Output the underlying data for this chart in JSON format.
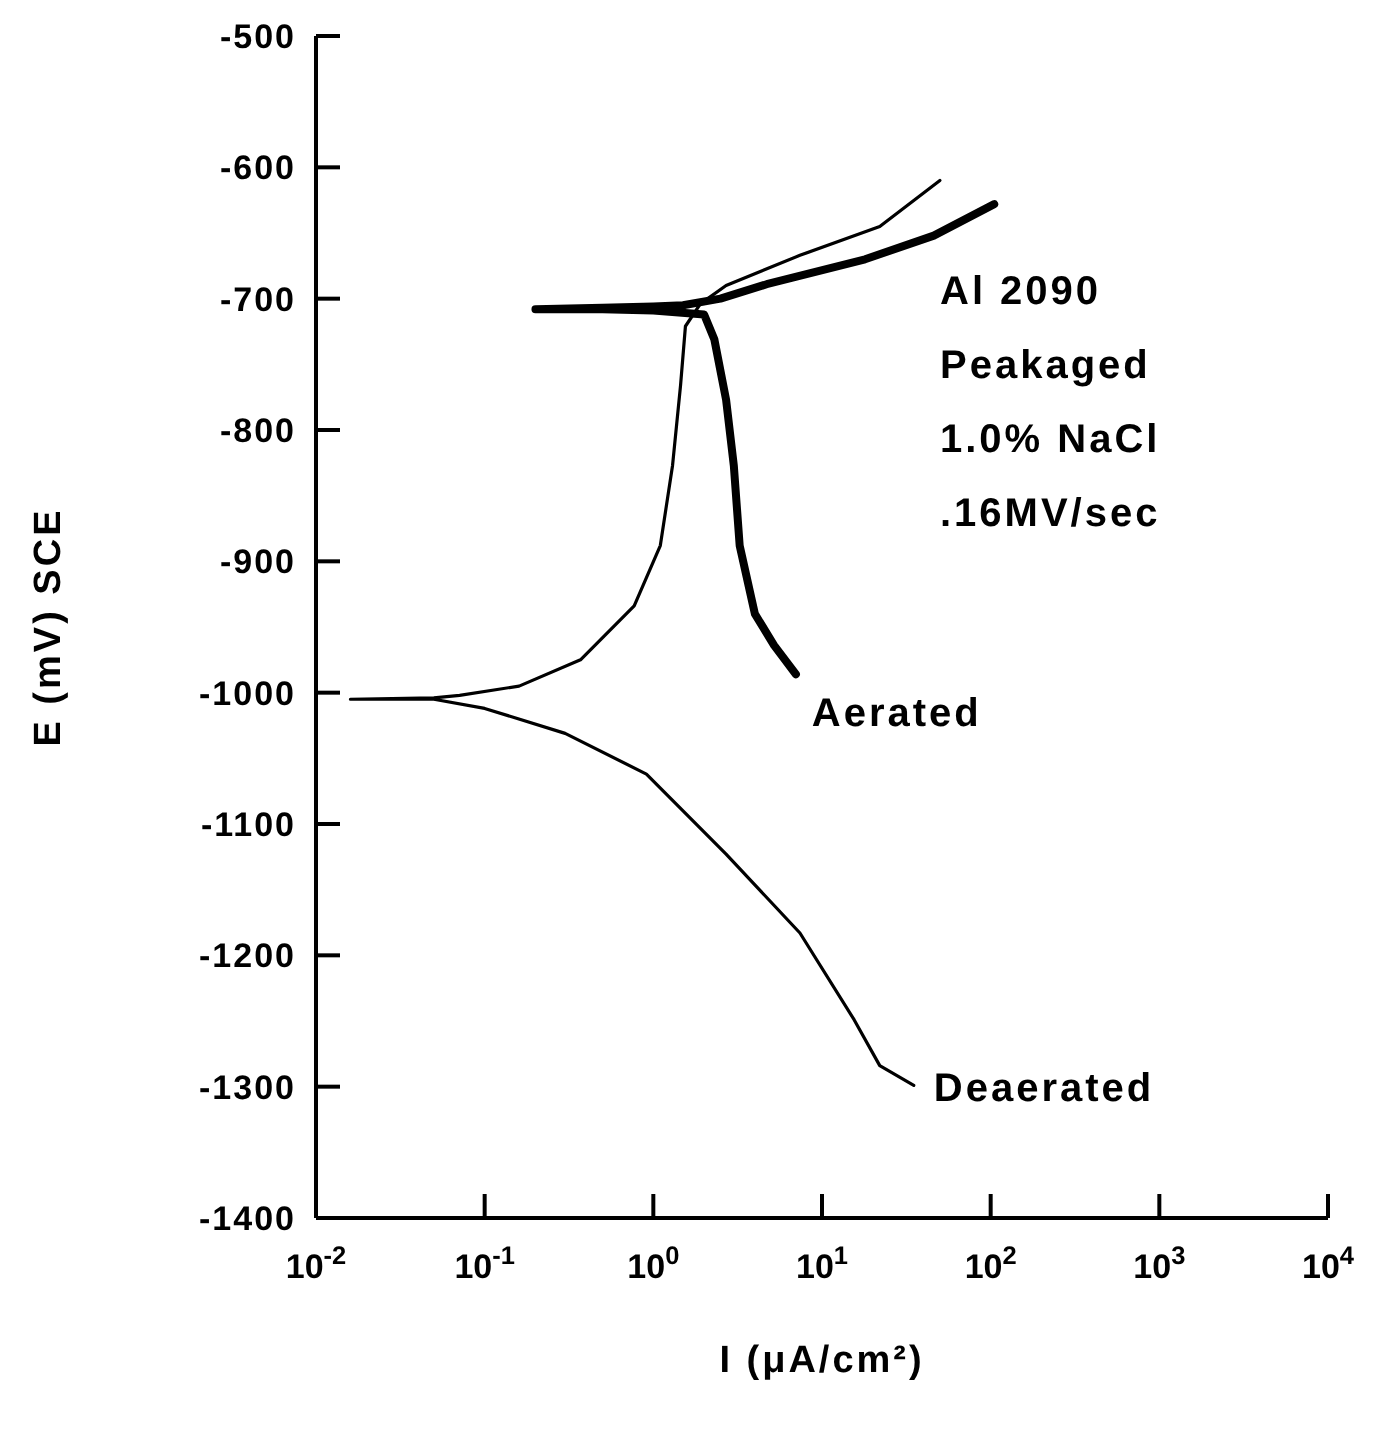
{
  "chart_data": {
    "type": "line",
    "xlabel": "I (μA/cm²)",
    "ylabel": "E (mV) SCE",
    "log": "x",
    "marker": "none",
    "line_style": "solid",
    "xlim": [
      0.01,
      10000
    ],
    "xticks": [
      {
        "value": 0.01,
        "label": "10$^{-2}$"
      },
      {
        "value": 0.1,
        "label": "10$^{-1}$"
      },
      {
        "value": 1,
        "label": "10$^{0}$"
      },
      {
        "value": 10,
        "label": "10$^{1}$"
      },
      {
        "value": 100,
        "label": "10$^{2}$"
      },
      {
        "value": 1000,
        "label": "10$^{3}$"
      },
      {
        "value": 10000,
        "label": "10$^{4}$"
      }
    ],
    "ylim": [
      -1400,
      -500
    ],
    "yticks": [
      -1400,
      -1300,
      -1200,
      -1100,
      -1000,
      -900,
      -800,
      -700,
      -600,
      -500
    ],
    "series": [
      {
        "name": "Aerated",
        "color": "#000000",
        "x": [
          7.0,
          5.2,
          4.0,
          3.25,
          3.0,
          2.7,
          2.3,
          2.0,
          1.0,
          0.5,
          0.2,
          0.5,
          1.0,
          1.5,
          2.5,
          4.7,
          18,
          46,
          105
        ],
        "values": [
          -986,
          -964,
          -940,
          -888,
          -827,
          -777,
          -731,
          -712,
          -709,
          -708,
          -708,
          -707,
          -706,
          -705,
          -700,
          -689,
          -670,
          -652,
          -628
        ]
      },
      {
        "name": "Deaerated",
        "color": "#000000",
        "x": [
          35,
          22,
          15.5,
          7.4,
          2.7,
          0.91,
          0.3,
          0.1,
          0.05,
          0.016,
          0.05,
          0.071,
          0.16,
          0.37,
          0.77,
          1.1,
          1.3,
          1.45,
          1.55,
          1.9,
          2.7,
          7.4,
          22,
          50
        ],
        "values": [
          -1299,
          -1284,
          -1249,
          -1183,
          -1123,
          -1062,
          -1031,
          -1012,
          -1005,
          -1005,
          -1004,
          -1002,
          -995,
          -975,
          -934,
          -888,
          -827,
          -766,
          -721,
          -704,
          -690,
          -667,
          -645,
          -610
        ]
      }
    ],
    "annotations": [
      "Al 2090",
      "Peakaged",
      "1.0% NaCl",
      ".16MV/sec"
    ]
  }
}
